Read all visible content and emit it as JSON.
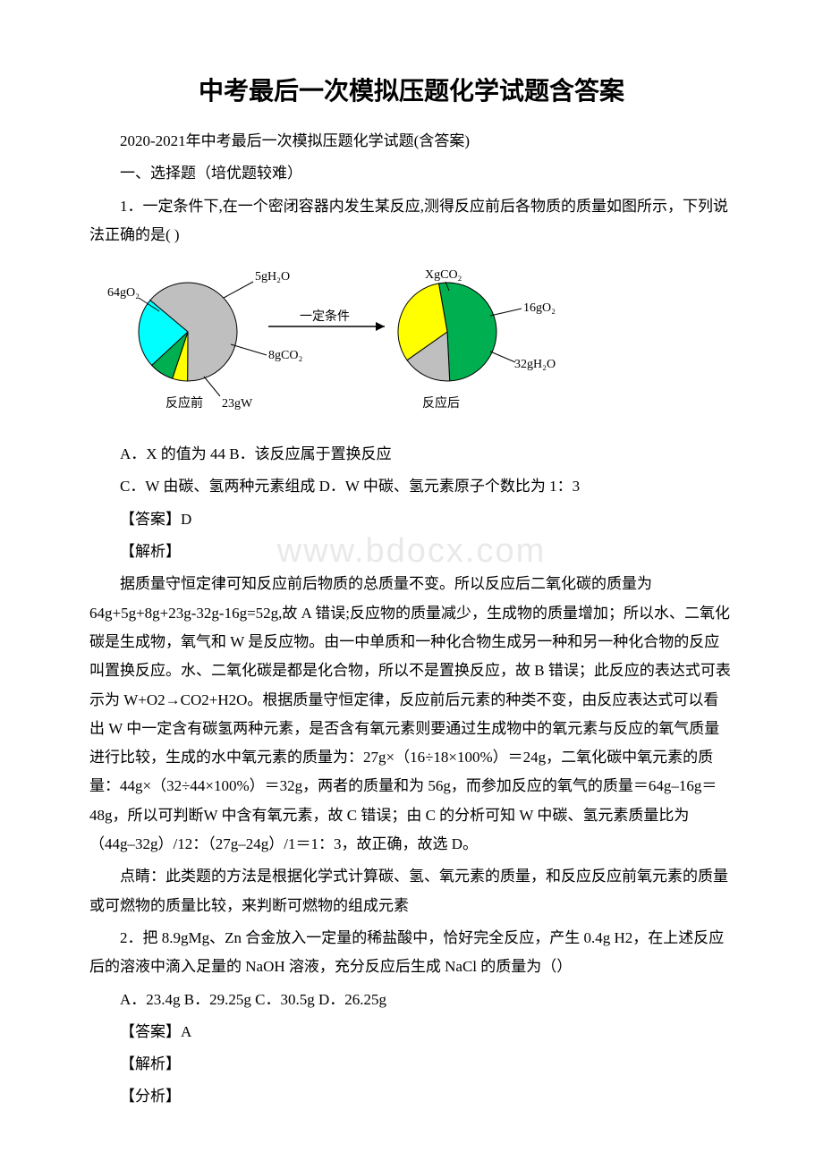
{
  "title": "中考最后一次模拟压题化学试题含答案",
  "subtitle": "2020-2021年中考最后一次模拟压题化学试题(含答案)",
  "section1": "一、选择题（培优题较难）",
  "q1_stem": "1．一定条件下,在一个密闭容器内发生某反应,测得反应前后各物质的质量如图所示，下列说法正确的是( )",
  "q1_optA": "A．X 的值为 44 B．该反应属于置换反应",
  "q1_optC": "C．W 由碳、氢两种元素组成 D．W 中碳、氢元素原子个数比为 1：3",
  "q1_ans": "【答案】D",
  "q1_exp_label": "【解析】",
  "q1_exp_p1": "据质量守恒定律可知反应前后物质的总质量不变。所以反应后二氧化碳的质量为64g+5g+8g+23g-32g-16g=52g,故 A 错误;反应物的质量减少，生成物的质量增加；所以水、二氧化碳是生成物，氧气和 W 是反应物。由一中单质和一种化合物生成另一种和另一种化合物的反应叫置换反应。水、二氧化碳是都是化合物，所以不是置换反应，故 B 错误；此反应的表达式可表示为 W+O2→CO2+H2O。根据质量守恒定律，反应前后元素的种类不变，由反应表达式可以看出 W 中一定含有碳氢两种元素，是否含有氧元素则要通过生成物中的氧元素与反应的氧气质量进行比较，生成的水中氧元素的质量为：27g×（16÷18×100%）＝24g，二氧化碳中氧元素的质量：44g×（32÷44×100%）＝32g，两者的质量和为 56g，而参加反应的氧气的质量＝64g–16g＝48g，所以可判断W 中含有氧元素，故 C 错误；由 C 的分析可知 W 中碳、氢元素质量比为（44g–32g）/12：（27g–24g）/1＝1：3，故正确，故选 D。",
  "q1_exp_p2": "点睛：此类题的方法是根据化学式计算碳、氢、氧元素的质量，和反应反应前氧元素的质量或可燃物的质量比较，来判断可燃物的组成元素",
  "q2_stem": "2．把 8.9gMg、Zn 合金放入一定量的稀盐酸中，恰好完全反应，产生 0.4g H2，在上述反应后的溶液中滴入足量的 NaOH 溶液，充分反应后生成 NaCl 的质量为（）",
  "q2_opts": "A．23.4g B．29.25g C．30.5g D．26.25g",
  "q2_ans": "【答案】A",
  "q2_exp_label": "【解析】",
  "q2_analysis": "【分析】",
  "watermark": "www.bdocx.com",
  "chart": {
    "type": "pie",
    "left": {
      "title": "反应前",
      "slices": [
        {
          "label": "64gO₂",
          "color": "#bfbfbf"
        },
        {
          "label": "5gH₂O",
          "color": "#ffff00"
        },
        {
          "label": "8gCO₂",
          "color": "#00b050"
        },
        {
          "label": "23gW",
          "color": "#00ffff"
        }
      ]
    },
    "right": {
      "title": "反应后",
      "slices": [
        {
          "label": "XgCO₂",
          "color": "#00b050"
        },
        {
          "label": "16gO₂",
          "color": "#bfbfbf"
        },
        {
          "label": "32gH₂O",
          "color": "#ffff00"
        }
      ]
    },
    "arrow_label": "一定条件",
    "stroke": "#000000",
    "bg": "#ffffff",
    "label_fontsize": 14
  }
}
